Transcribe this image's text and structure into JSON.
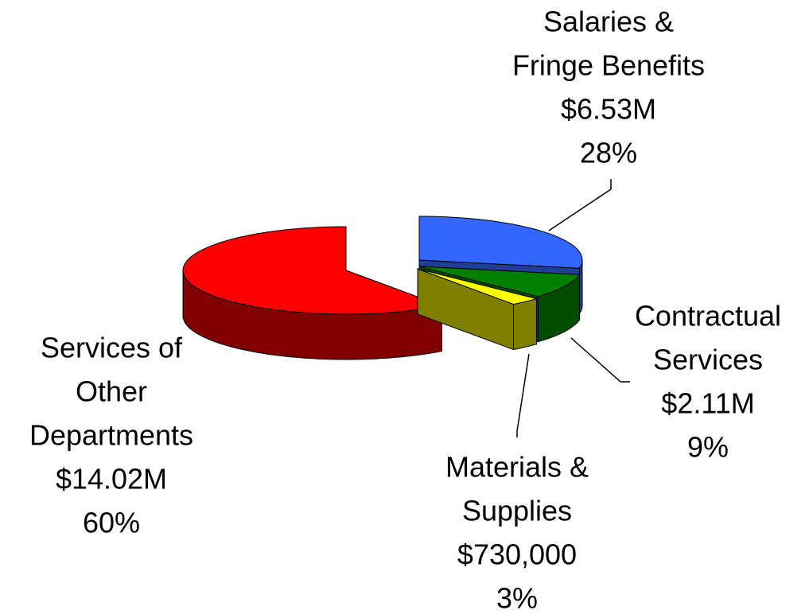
{
  "chart_data": {
    "type": "pie",
    "categories": [
      [
        "Salaries &",
        "Fringe Benefits"
      ],
      [
        "Contractual",
        "Services"
      ],
      [
        "Materials &",
        "Supplies"
      ],
      [
        "Services of",
        "Other",
        "Departments"
      ]
    ],
    "values": [
      28,
      9,
      3,
      60
    ],
    "value_labels": [
      "28%",
      "9%",
      "3%",
      "60%"
    ],
    "amounts": [
      6530000,
      2110000,
      730000,
      14020000
    ],
    "amount_labels": [
      "$6.53M",
      "$2.11M",
      "$730,000",
      "$14.02M"
    ],
    "colors": [
      "#3366ff",
      "#008000",
      "#ffff00",
      "#ff0000"
    ],
    "side_colors": [
      "#1f3d99",
      "#004d00",
      "#808000",
      "#800000"
    ]
  }
}
